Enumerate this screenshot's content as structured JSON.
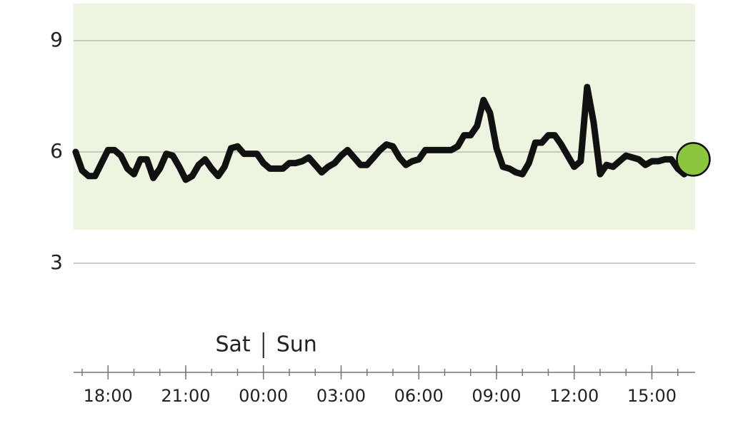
{
  "chart_data": {
    "type": "line",
    "x": [
      16.75,
      17,
      17.25,
      17.5,
      17.75,
      18,
      18.25,
      18.5,
      18.75,
      19,
      19.25,
      19.5,
      19.75,
      20,
      20.25,
      20.5,
      20.75,
      21,
      21.25,
      21.5,
      21.75,
      22,
      22.25,
      22.5,
      22.75,
      23,
      23.25,
      23.5,
      23.75,
      24,
      24.25,
      24.5,
      24.75,
      25,
      25.25,
      25.5,
      25.75,
      26,
      26.25,
      26.5,
      26.75,
      27,
      27.25,
      27.5,
      27.75,
      28,
      28.25,
      28.5,
      28.75,
      29,
      29.25,
      29.5,
      29.75,
      30,
      30.25,
      30.5,
      30.75,
      31,
      31.25,
      31.5,
      31.75,
      32,
      32.25,
      32.5,
      32.75,
      33,
      33.25,
      33.5,
      33.75,
      34,
      34.25,
      34.5,
      34.75,
      35,
      35.25,
      35.5,
      35.75,
      36,
      36.25,
      36.5,
      36.75,
      37,
      37.25,
      37.5,
      37.75,
      38,
      38.25,
      38.5,
      38.75,
      39,
      39.25,
      39.5,
      39.75,
      40,
      40.25
    ],
    "series": [
      {
        "color": "#111111",
        "values": [
          6.0,
          5.5,
          5.35,
          5.35,
          5.7,
          6.05,
          6.05,
          5.9,
          5.55,
          5.4,
          5.8,
          5.8,
          5.3,
          5.55,
          5.95,
          5.9,
          5.6,
          5.25,
          5.35,
          5.65,
          5.8,
          5.55,
          5.35,
          5.6,
          6.1,
          6.15,
          5.95,
          5.95,
          5.95,
          5.7,
          5.55,
          5.55,
          5.55,
          5.7,
          5.7,
          5.75,
          5.85,
          5.65,
          5.45,
          5.6,
          5.7,
          5.9,
          6.05,
          5.85,
          5.65,
          5.65,
          5.85,
          6.05,
          6.2,
          6.15,
          5.85,
          5.65,
          5.75,
          5.8,
          6.05,
          6.05,
          6.05,
          6.05,
          6.05,
          6.15,
          6.45,
          6.45,
          6.7,
          7.4,
          7.05,
          6.1,
          5.6,
          5.55,
          5.45,
          5.4,
          5.7,
          6.25,
          6.25,
          6.45,
          6.45,
          6.2,
          5.9,
          5.6,
          5.75,
          7.75,
          6.8,
          5.4,
          5.65,
          5.6,
          5.75,
          5.9,
          5.85,
          5.8,
          5.65,
          5.75,
          5.75,
          5.8,
          5.8,
          5.55,
          5.4
        ]
      }
    ],
    "current": {
      "x": 40.6,
      "value": 5.8,
      "color": "#8cc63f"
    },
    "target_range": [
      3.9,
      10
    ],
    "target_color": "#edf5e1",
    "xlim": [
      16.67,
      40.67
    ],
    "ylim": [
      0,
      10
    ],
    "yticks": [
      3,
      6,
      9
    ],
    "xticks": [
      {
        "value": 18,
        "label": "18:00"
      },
      {
        "value": 21,
        "label": "21:00"
      },
      {
        "value": 24,
        "label": "00:00"
      },
      {
        "value": 27,
        "label": "03:00"
      },
      {
        "value": 30,
        "label": "06:00"
      },
      {
        "value": 33,
        "label": "09:00"
      },
      {
        "value": 36,
        "label": "12:00"
      },
      {
        "value": 39,
        "label": "15:00"
      }
    ],
    "xminorticks": [
      17,
      18,
      19,
      20,
      21,
      22,
      23,
      24,
      25,
      26,
      27,
      28,
      29,
      30,
      31,
      32,
      33,
      34,
      35,
      36,
      37,
      38,
      39,
      40
    ],
    "day_boundary": {
      "value": 24,
      "before": "Sat",
      "after": "Sun"
    },
    "grid": true
  }
}
